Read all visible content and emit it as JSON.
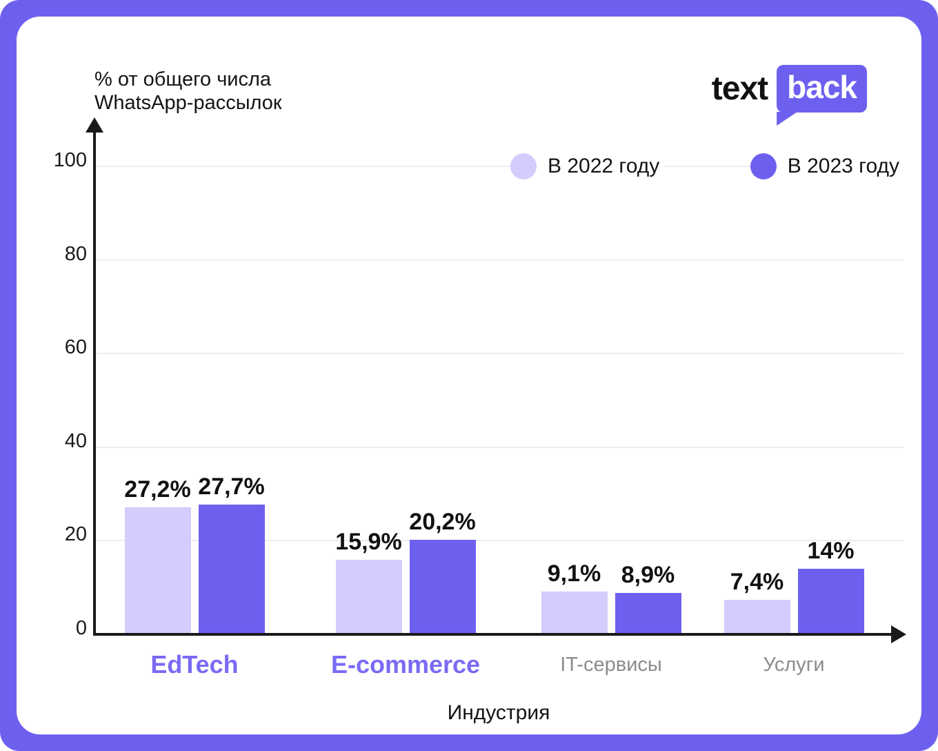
{
  "page": {
    "frame_color": "#6E60EF",
    "card_color": "#ffffff"
  },
  "axis_title": {
    "line1": "% от общего числа",
    "line2": "WhatsApp-рассылок"
  },
  "logo": {
    "text_part": "text",
    "bubble_part": "back",
    "bubble_color": "#6E60EF"
  },
  "legend": {
    "items": [
      {
        "label": "В 2022 году",
        "color": "#D3CCFC"
      },
      {
        "label": "В 2023 году",
        "color": "#6E60EF"
      }
    ]
  },
  "chart_data": {
    "type": "bar",
    "title": "% от общего числа WhatsApp-рассылок",
    "xlabel": "Индустрия",
    "ylabel": "% от общего числа WhatsApp-рассылок",
    "categories": [
      {
        "label": "EdTech",
        "emphasized": true
      },
      {
        "label": "E-commerce",
        "emphasized": true
      },
      {
        "label": "IT-сервисы",
        "emphasized": false
      },
      {
        "label": "Услуги",
        "emphasized": false
      }
    ],
    "series": [
      {
        "name": "В 2022 году",
        "color": "#D3CCFC",
        "values": [
          27.2,
          15.9,
          9.1,
          7.4
        ],
        "labels": [
          "27,2%",
          "15,9%",
          "9,1%",
          "7,4%"
        ]
      },
      {
        "name": "В 2023 году",
        "color": "#6E60EF",
        "values": [
          27.7,
          20.2,
          8.9,
          14
        ],
        "labels": [
          "27,7%",
          "20,2%",
          "8,9%",
          "14%"
        ]
      }
    ],
    "y_ticks": [
      0,
      20,
      40,
      60,
      80,
      100
    ],
    "ylim": [
      0,
      100
    ],
    "grid": true,
    "legend_position": "top-right",
    "emphasized_label_color": "#7A6AF3"
  }
}
